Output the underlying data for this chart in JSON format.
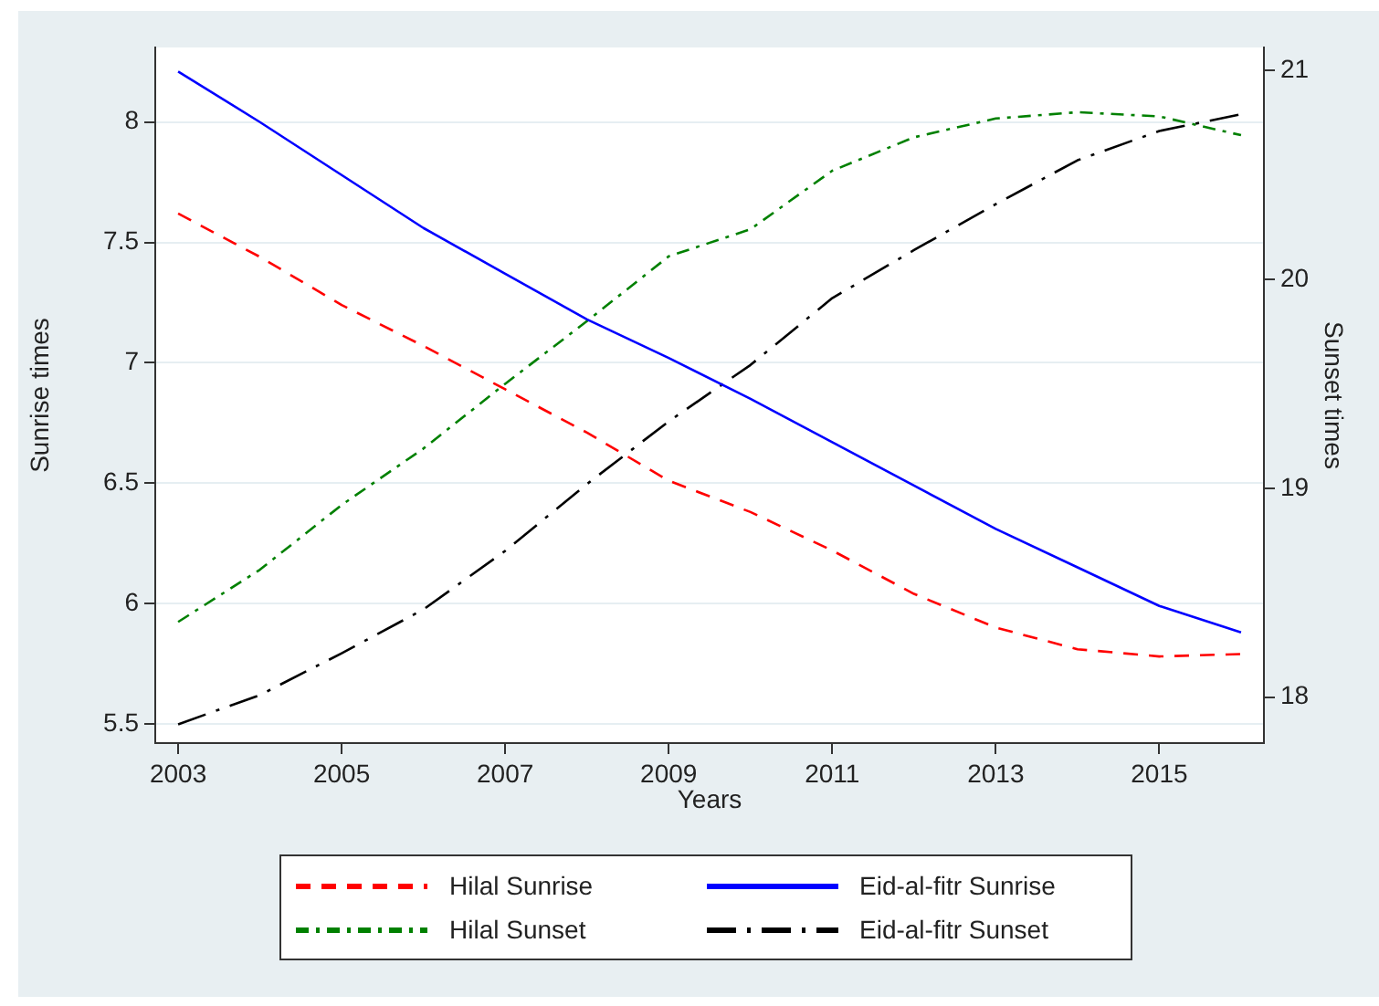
{
  "chart_data": {
    "type": "line",
    "xlabel": "Years",
    "ylabel": "Sunrise times",
    "y2label": "Sunset times",
    "x": [
      2003,
      2004,
      2005,
      2006,
      2007,
      2008,
      2009,
      2010,
      2011,
      2012,
      2013,
      2014,
      2015,
      2016
    ],
    "series": [
      {
        "name": "Hilal Sunrise",
        "color": "#ff0000",
        "line_style": "dashed",
        "values": [
          7.62,
          7.44,
          7.24,
          7.07,
          6.89,
          6.71,
          6.51,
          6.38,
          6.22,
          6.04,
          5.9,
          5.81,
          5.78,
          5.79
        ]
      },
      {
        "name": "Eid-al-fitr Sunrise",
        "color": "#0000ff",
        "line_style": "solid",
        "values": [
          8.21,
          8.0,
          7.78,
          7.56,
          7.37,
          7.18,
          7.02,
          6.85,
          6.67,
          6.49,
          6.31,
          6.15,
          5.99,
          5.88
        ]
      },
      {
        "name": "Hilal Sunset",
        "color": "#008000",
        "line_style": "dashdot",
        "axis": "y2",
        "values": [
          18.36,
          18.61,
          18.92,
          19.19,
          19.5,
          19.8,
          20.11,
          20.24,
          20.52,
          20.68,
          20.77,
          20.8,
          20.78,
          20.69
        ]
      },
      {
        "name": "Eid-al-fitr Sunset",
        "color": "#000000",
        "line_style": "longdashdot",
        "axis": "y2",
        "values": [
          17.87,
          18.01,
          18.21,
          18.42,
          18.7,
          19.02,
          19.32,
          19.59,
          19.91,
          20.14,
          20.36,
          20.57,
          20.71,
          20.79
        ]
      }
    ],
    "xlim": [
      2002.72,
      2016.28
    ],
    "xticks": [
      2003,
      2005,
      2007,
      2009,
      2011,
      2013,
      2015
    ],
    "ylim": [
      5.42,
      8.31
    ],
    "yticks": [
      5.5,
      6,
      6.5,
      7,
      7.5,
      8
    ],
    "y2lim": [
      17.78,
      21.11
    ],
    "y2ticks": [
      18,
      19,
      20,
      21
    ],
    "grid": "y",
    "legend": "bottom",
    "marker": "none"
  }
}
